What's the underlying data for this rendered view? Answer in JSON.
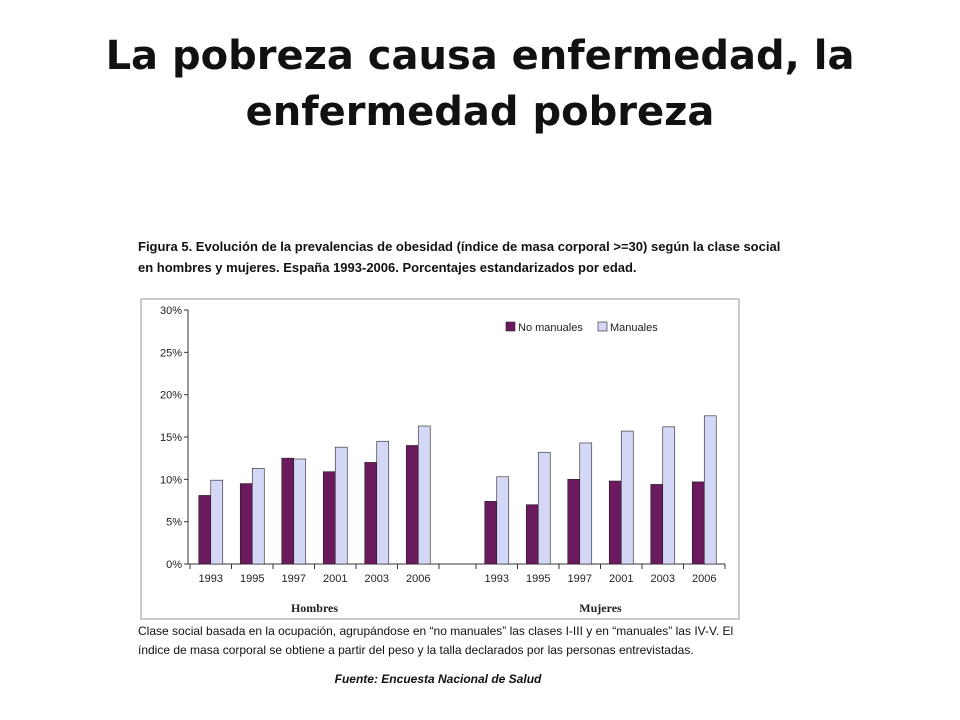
{
  "slide": {
    "title": "La pobreza causa enfermedad, la enfermedad pobreza"
  },
  "figure": {
    "caption_line1": "Figura 5. Evolución de la prevalencias de obesidad (índice de masa corporal >=30) según la clase social",
    "caption_line2": "en hombres y mujeres. España 1993-2006. Porcentajes estandarizados por edad.",
    "note_line1": "Clase social basada en la ocupación, agrupándose en “no manuales” las clases I-III y en “manuales” las IV-V.  El",
    "note_line2": "índice de masa corporal se obtiene a partir del peso y la talla declarados por las personas entrevistadas.",
    "source": "Fuente: Encuesta Nacional de Salud"
  },
  "chart_data": {
    "type": "bar",
    "ylim": [
      0,
      30
    ],
    "y_ticks": [
      "0%",
      "5%",
      "10%",
      "15%",
      "20%",
      "25%",
      "30%"
    ],
    "groups": [
      {
        "name": "Hombres",
        "categories": [
          "1993",
          "1995",
          "1997",
          "2001",
          "2003",
          "2006"
        ],
        "series": [
          {
            "name": "No manuales",
            "values": [
              8.1,
              9.5,
              12.5,
              10.9,
              12.0,
              14.0
            ]
          },
          {
            "name": "Manuales",
            "values": [
              9.9,
              11.3,
              12.4,
              13.8,
              14.5,
              16.3
            ]
          }
        ]
      },
      {
        "name": "Mujeres",
        "categories": [
          "1993",
          "1995",
          "1997",
          "2001",
          "2003",
          "2006"
        ],
        "series": [
          {
            "name": "No manuales",
            "values": [
              7.4,
              7.0,
              10.0,
              9.8,
              9.4,
              9.7
            ]
          },
          {
            "name": "Manuales",
            "values": [
              10.3,
              13.2,
              14.3,
              15.7,
              16.2,
              17.5
            ]
          }
        ]
      }
    ],
    "legend": {
      "position": "top-right",
      "labels": [
        "No manuales",
        "Manuales"
      ]
    },
    "colors": {
      "No manuales": "#6b1a5e",
      "Manuales": "#d4d8f6"
    },
    "grid": false
  }
}
